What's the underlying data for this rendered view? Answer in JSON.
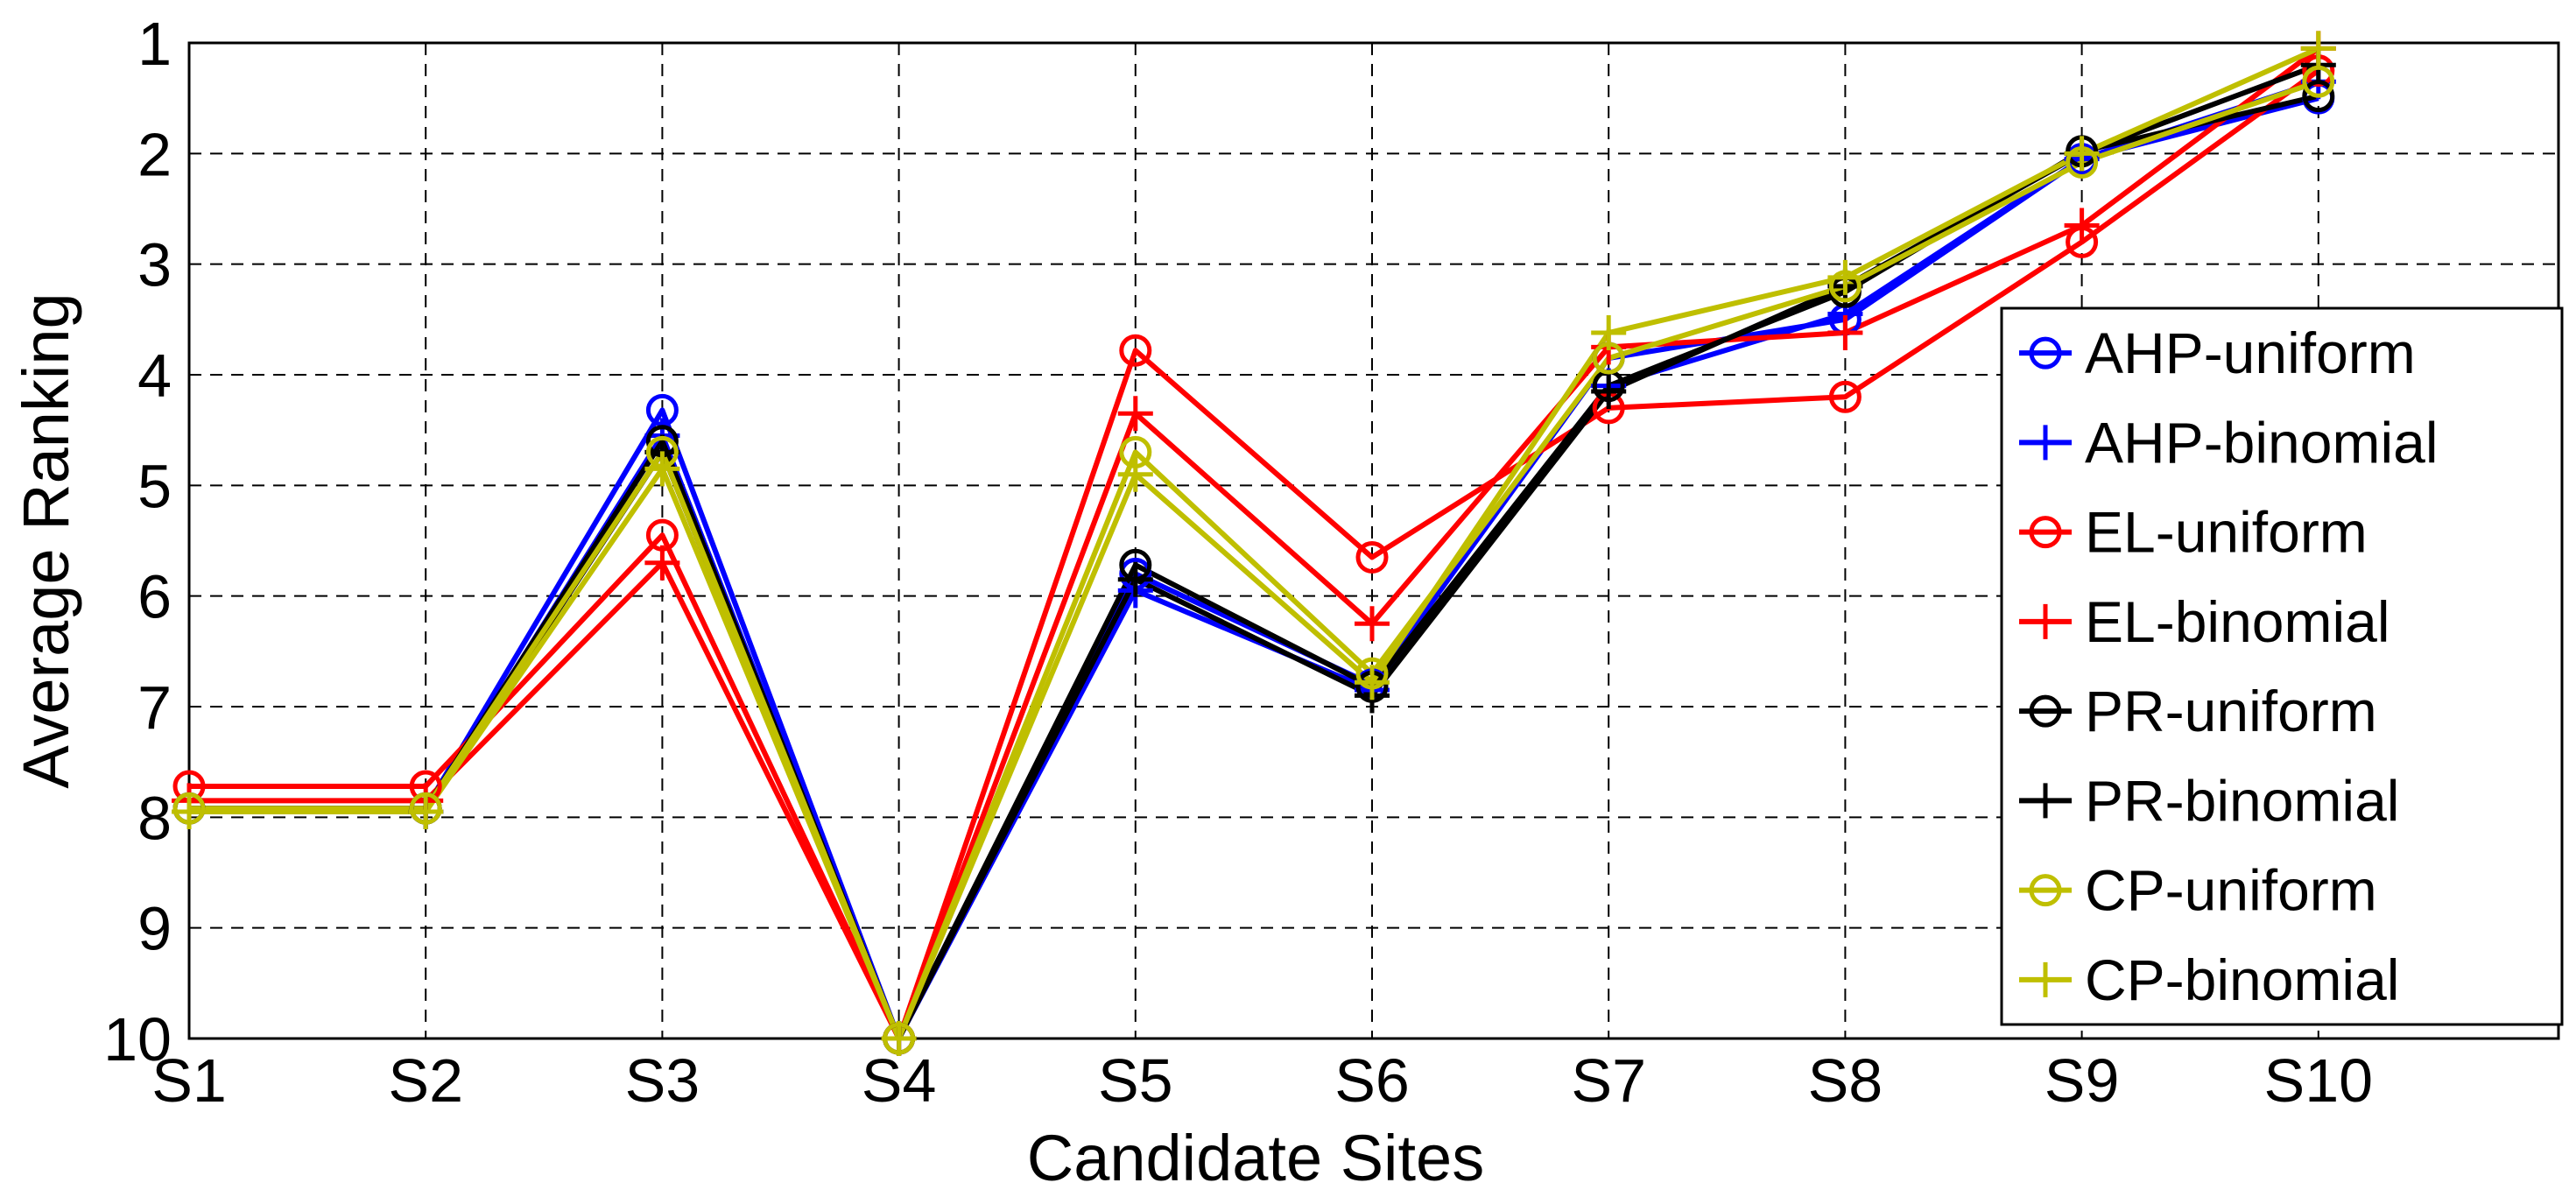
{
  "chart_data": {
    "type": "line",
    "title": "",
    "xlabel": "Candidate Sites",
    "ylabel": "Average Ranking",
    "categories": [
      "S1",
      "S2",
      "S3",
      "S4",
      "S5",
      "S6",
      "S7",
      "S8",
      "S9",
      "S10"
    ],
    "y_ticks": [
      "1",
      "2",
      "3",
      "4",
      "5",
      "6",
      "7",
      "8",
      "9",
      "10"
    ],
    "ylim": [
      1,
      10
    ],
    "y_reversed": true,
    "grid": true,
    "legend_position": "right",
    "series": [
      {
        "name": "AHP-uniform",
        "color": "#0000ff",
        "marker": "circle",
        "values": [
          7.92,
          7.92,
          4.32,
          10,
          5.8,
          6.8,
          3.85,
          3.5,
          2.05,
          1.5
        ]
      },
      {
        "name": "AHP-binomial",
        "color": "#0000ff",
        "marker": "plus",
        "values": [
          7.95,
          7.95,
          4.55,
          10,
          5.95,
          6.85,
          4.1,
          3.45,
          2.05,
          1.35
        ]
      },
      {
        "name": "EL-uniform",
        "color": "#ff0000",
        "marker": "circle",
        "values": [
          7.72,
          7.72,
          5.45,
          10,
          3.78,
          5.65,
          4.3,
          4.2,
          2.8,
          1.25
        ]
      },
      {
        "name": "EL-binomial",
        "color": "#ff0000",
        "marker": "plus",
        "values": [
          7.85,
          7.85,
          5.7,
          10,
          4.35,
          6.25,
          3.75,
          3.62,
          2.65,
          1.05
        ]
      },
      {
        "name": "PR-uniform",
        "color": "#000000",
        "marker": "circle",
        "values": [
          7.92,
          7.92,
          4.6,
          10,
          5.72,
          6.82,
          4.1,
          3.25,
          1.98,
          1.48
        ]
      },
      {
        "name": "PR-binomial",
        "color": "#000000",
        "marker": "plus",
        "values": [
          7.95,
          7.95,
          4.7,
          10,
          5.85,
          6.9,
          4.15,
          3.2,
          2.0,
          1.2
        ]
      },
      {
        "name": "CP-uniform",
        "color": "#bfbf00",
        "marker": "circle",
        "values": [
          7.92,
          7.92,
          4.7,
          10,
          4.7,
          6.7,
          3.85,
          3.2,
          2.08,
          1.35
        ]
      },
      {
        "name": "CP-binomial",
        "color": "#bfbf00",
        "marker": "plus",
        "values": [
          7.95,
          7.95,
          4.85,
          10,
          4.9,
          6.78,
          3.62,
          3.12,
          2.0,
          1.05
        ]
      }
    ]
  }
}
